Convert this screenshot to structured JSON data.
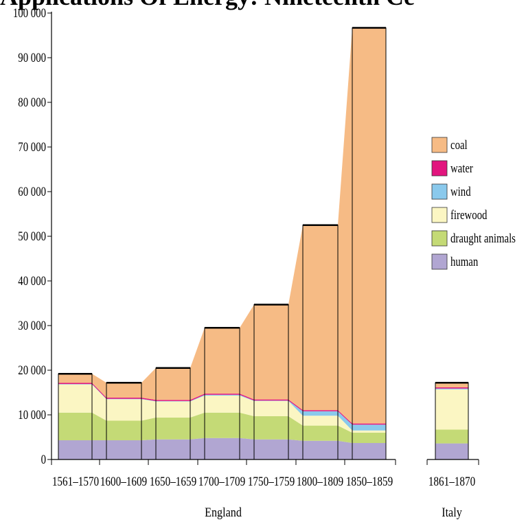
{
  "chart_data": {
    "type": "area",
    "title": "Applications Of Energy: Nineteenth Ce",
    "xlabel": "",
    "ylabel": "",
    "ylim": [
      0,
      100000
    ],
    "yticks": [
      "0",
      "10 000",
      "20 000",
      "30 000",
      "40 000",
      "50 000",
      "60 000",
      "70 000",
      "80 000",
      "90 000",
      "100 000"
    ],
    "groups": [
      {
        "name": "England",
        "categories": [
          "1561–1570",
          "1600–1609",
          "1650–1659",
          "1700–1709",
          "1750–1759",
          "1800–1809",
          "1850–1859"
        ]
      },
      {
        "name": "Italy",
        "categories": [
          "1861–1870"
        ]
      }
    ],
    "categories": [
      "1561–1570",
      "1600–1609",
      "1650–1659",
      "1700–1709",
      "1750–1759",
      "1800–1809",
      "1850–1859",
      "1861–1870"
    ],
    "series": [
      {
        "name": "human",
        "color": "#b1a6d2",
        "values": [
          4300,
          4300,
          4500,
          4800,
          4500,
          4200,
          3700,
          3600
        ]
      },
      {
        "name": "draught animals",
        "color": "#c4da76",
        "values": [
          6200,
          4400,
          4900,
          5700,
          5200,
          3400,
          2300,
          3100
        ]
      },
      {
        "name": "firewood",
        "color": "#fbf6c3",
        "values": [
          6300,
          4800,
          3600,
          3800,
          3400,
          2200,
          500,
          9000
        ]
      },
      {
        "name": "wind",
        "color": "#8ac9ec",
        "values": [
          100,
          100,
          100,
          200,
          100,
          1000,
          1300,
          200
        ]
      },
      {
        "name": "water",
        "color": "#e2157e",
        "values": [
          250,
          250,
          250,
          250,
          250,
          250,
          250,
          250
        ]
      },
      {
        "name": "coal",
        "color": "#f6bb85",
        "values": [
          2050,
          3350,
          7150,
          14750,
          21250,
          41450,
          88650,
          1050
        ]
      }
    ],
    "totals": [
      19200,
      17200,
      20500,
      29500,
      34700,
      52500,
      96700,
      17200
    ],
    "legend": {
      "position": "right",
      "order": [
        "coal",
        "water",
        "wind",
        "firewood",
        "draught animals",
        "human"
      ]
    },
    "grid": false
  }
}
